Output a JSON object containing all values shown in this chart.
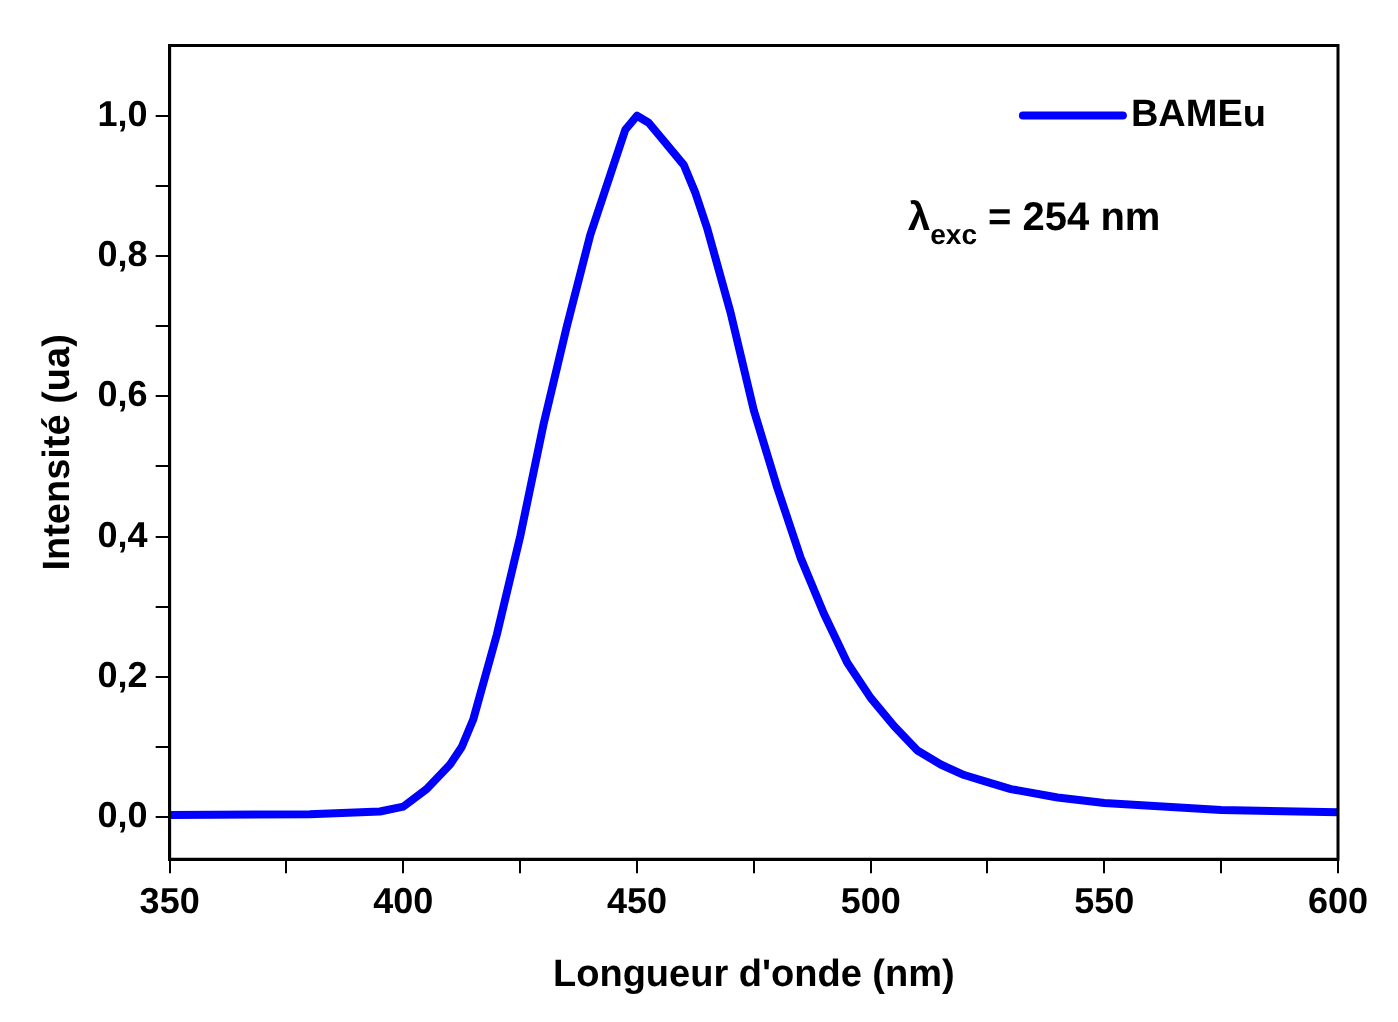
{
  "chart_data": {
    "type": "line",
    "xlabel": "Longueur d'onde (nm)",
    "ylabel": "Intensité (ua)",
    "x": [
      350,
      380,
      395,
      400,
      405,
      410,
      412.5,
      415,
      420,
      425,
      430,
      435,
      440,
      445,
      447.5,
      450,
      452.5,
      455,
      460,
      462.5,
      465,
      470,
      475,
      480,
      485,
      490,
      495,
      500,
      505,
      510,
      515,
      520,
      525,
      530,
      540,
      550,
      575,
      600
    ],
    "series": [
      {
        "name": "BAMEu",
        "color": "#0000ff",
        "values": [
          0.003,
          0.004,
          0.008,
          0.015,
          0.04,
          0.075,
          0.1,
          0.14,
          0.26,
          0.4,
          0.56,
          0.7,
          0.83,
          0.93,
          0.98,
          1.0,
          0.99,
          0.97,
          0.93,
          0.89,
          0.84,
          0.72,
          0.58,
          0.47,
          0.37,
          0.29,
          0.22,
          0.17,
          0.13,
          0.095,
          0.075,
          0.06,
          0.05,
          0.04,
          0.028,
          0.02,
          0.01,
          0.007
        ]
      }
    ],
    "xlim": [
      350,
      600
    ],
    "xticks": [
      350,
      {
        "value": 375,
        "label": null
      },
      400,
      {
        "value": 425,
        "label": null
      },
      450,
      {
        "value": 475,
        "label": null
      },
      500,
      {
        "value": 525,
        "label": null
      },
      550,
      {
        "value": 575,
        "label": null
      },
      600
    ],
    "ylim": [
      -0.06,
      1.1
    ],
    "yticks": [
      {
        "value": 0,
        "label": "0,0"
      },
      {
        "value": 0.1,
        "label": null
      },
      {
        "value": 0.2,
        "label": "0,2"
      },
      {
        "value": 0.3,
        "label": null
      },
      {
        "value": 0.4,
        "label": "0,4"
      },
      {
        "value": 0.5,
        "label": null
      },
      {
        "value": 0.6,
        "label": "0,6"
      },
      {
        "value": 0.7,
        "label": null
      },
      {
        "value": 0.8,
        "label": "0,8"
      },
      {
        "value": 0.9,
        "label": null
      },
      {
        "value": 1.0,
        "label": "1,0"
      }
    ],
    "annotations": [
      "λ$_{exc}$ = 254 nm"
    ],
    "legend": "top right",
    "grid": false,
    "marker": "none",
    "line_style": "solid"
  }
}
